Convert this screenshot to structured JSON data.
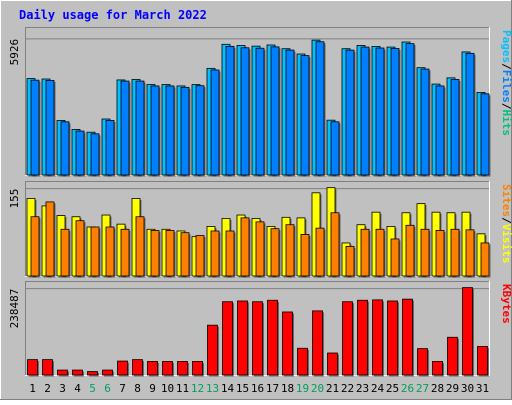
{
  "chart_data": {
    "type": "bar",
    "title": "Daily usage for March 2022",
    "categories": [
      "1",
      "2",
      "3",
      "4",
      "5",
      "6",
      "7",
      "8",
      "9",
      "10",
      "11",
      "12",
      "13",
      "14",
      "15",
      "16",
      "17",
      "18",
      "19",
      "20",
      "21",
      "22",
      "23",
      "24",
      "25",
      "26",
      "27",
      "28",
      "29",
      "30",
      "31"
    ],
    "weekend_days": [
      5,
      6,
      12,
      13,
      19,
      20,
      26,
      27
    ],
    "panels": [
      {
        "id": "hits",
        "ymax": 5926,
        "ymax_label": "5926",
        "legend": [
          "Pages",
          "/",
          "Files",
          "/",
          "Hits"
        ],
        "legend_colors": [
          "#00c0ff",
          "#000000",
          "#0080ff",
          "#000000",
          "#00c080"
        ],
        "series": [
          {
            "name": "Hits",
            "color": "#00c0ff",
            "values": [
              4170,
              4150,
              2360,
              1970,
              1850,
              2420,
              4110,
              4130,
              3910,
              3910,
              3850,
              3910,
              4610,
              5650,
              5600,
              5570,
              5620,
              5460,
              5230,
              5830,
              2370,
              5460,
              5600,
              5560,
              5530,
              5750,
              4640,
              3930,
              4200,
              5320,
              3570
            ]
          },
          {
            "name": "Files",
            "color": "#0080ff",
            "values": [
              4100,
              4090,
              2300,
              1900,
              1780,
              2360,
              4060,
              4060,
              3850,
              3850,
              3790,
              3860,
              4540,
              5560,
              5500,
              5480,
              5540,
              5400,
              5160,
              5760,
              2300,
              5400,
              5530,
              5490,
              5470,
              5680,
              4580,
              3850,
              4130,
              5260,
              3510
            ]
          }
        ]
      },
      {
        "id": "visits",
        "ymax": 155,
        "ymax_label": "155",
        "legend": [
          "Sites",
          "/",
          "Visits"
        ],
        "legend_colors": [
          "#ff8000",
          "#000000",
          "#ffff00"
        ],
        "series": [
          {
            "name": "Visits",
            "color": "#ffff00",
            "values": [
              136,
              123,
              106,
              104,
              86,
              107,
              91,
              136,
              82,
              82,
              79,
              69,
              87,
              101,
              107,
              101,
              87,
              103,
              102,
              146,
              155,
              58,
              90,
              112,
              87,
              111,
              127,
              112,
              111,
              112,
              74
            ]
          },
          {
            "name": "Sites",
            "color": "#ff8000",
            "values": [
              104,
              130,
              82,
              97,
              86,
              86,
              82,
              104,
              80,
              80,
              76,
              71,
              79,
              79,
              102,
              95,
              83,
              90,
              73,
              84,
              111,
              52,
              82,
              82,
              65,
              89,
              82,
              80,
              82,
              81,
              58
            ]
          }
        ]
      },
      {
        "id": "kbytes",
        "ymax": 238487,
        "ymax_label": "238487",
        "legend": [
          "KBytes"
        ],
        "legend_colors": [
          "#ff0000"
        ],
        "series": [
          {
            "name": "KBytes",
            "color": "#ff0000",
            "values": [
              42000,
              42000,
              13500,
              13500,
              9500,
              13500,
              38000,
              42000,
              37000,
              37000,
              37000,
              37000,
              136000,
              200000,
              202000,
              200000,
              204000,
              172000,
              73000,
              175000,
              60000,
              200000,
              204000,
              205000,
              202000,
              207000,
              72000,
              37000,
              103000,
              238487,
              78000
            ]
          }
        ]
      }
    ]
  }
}
